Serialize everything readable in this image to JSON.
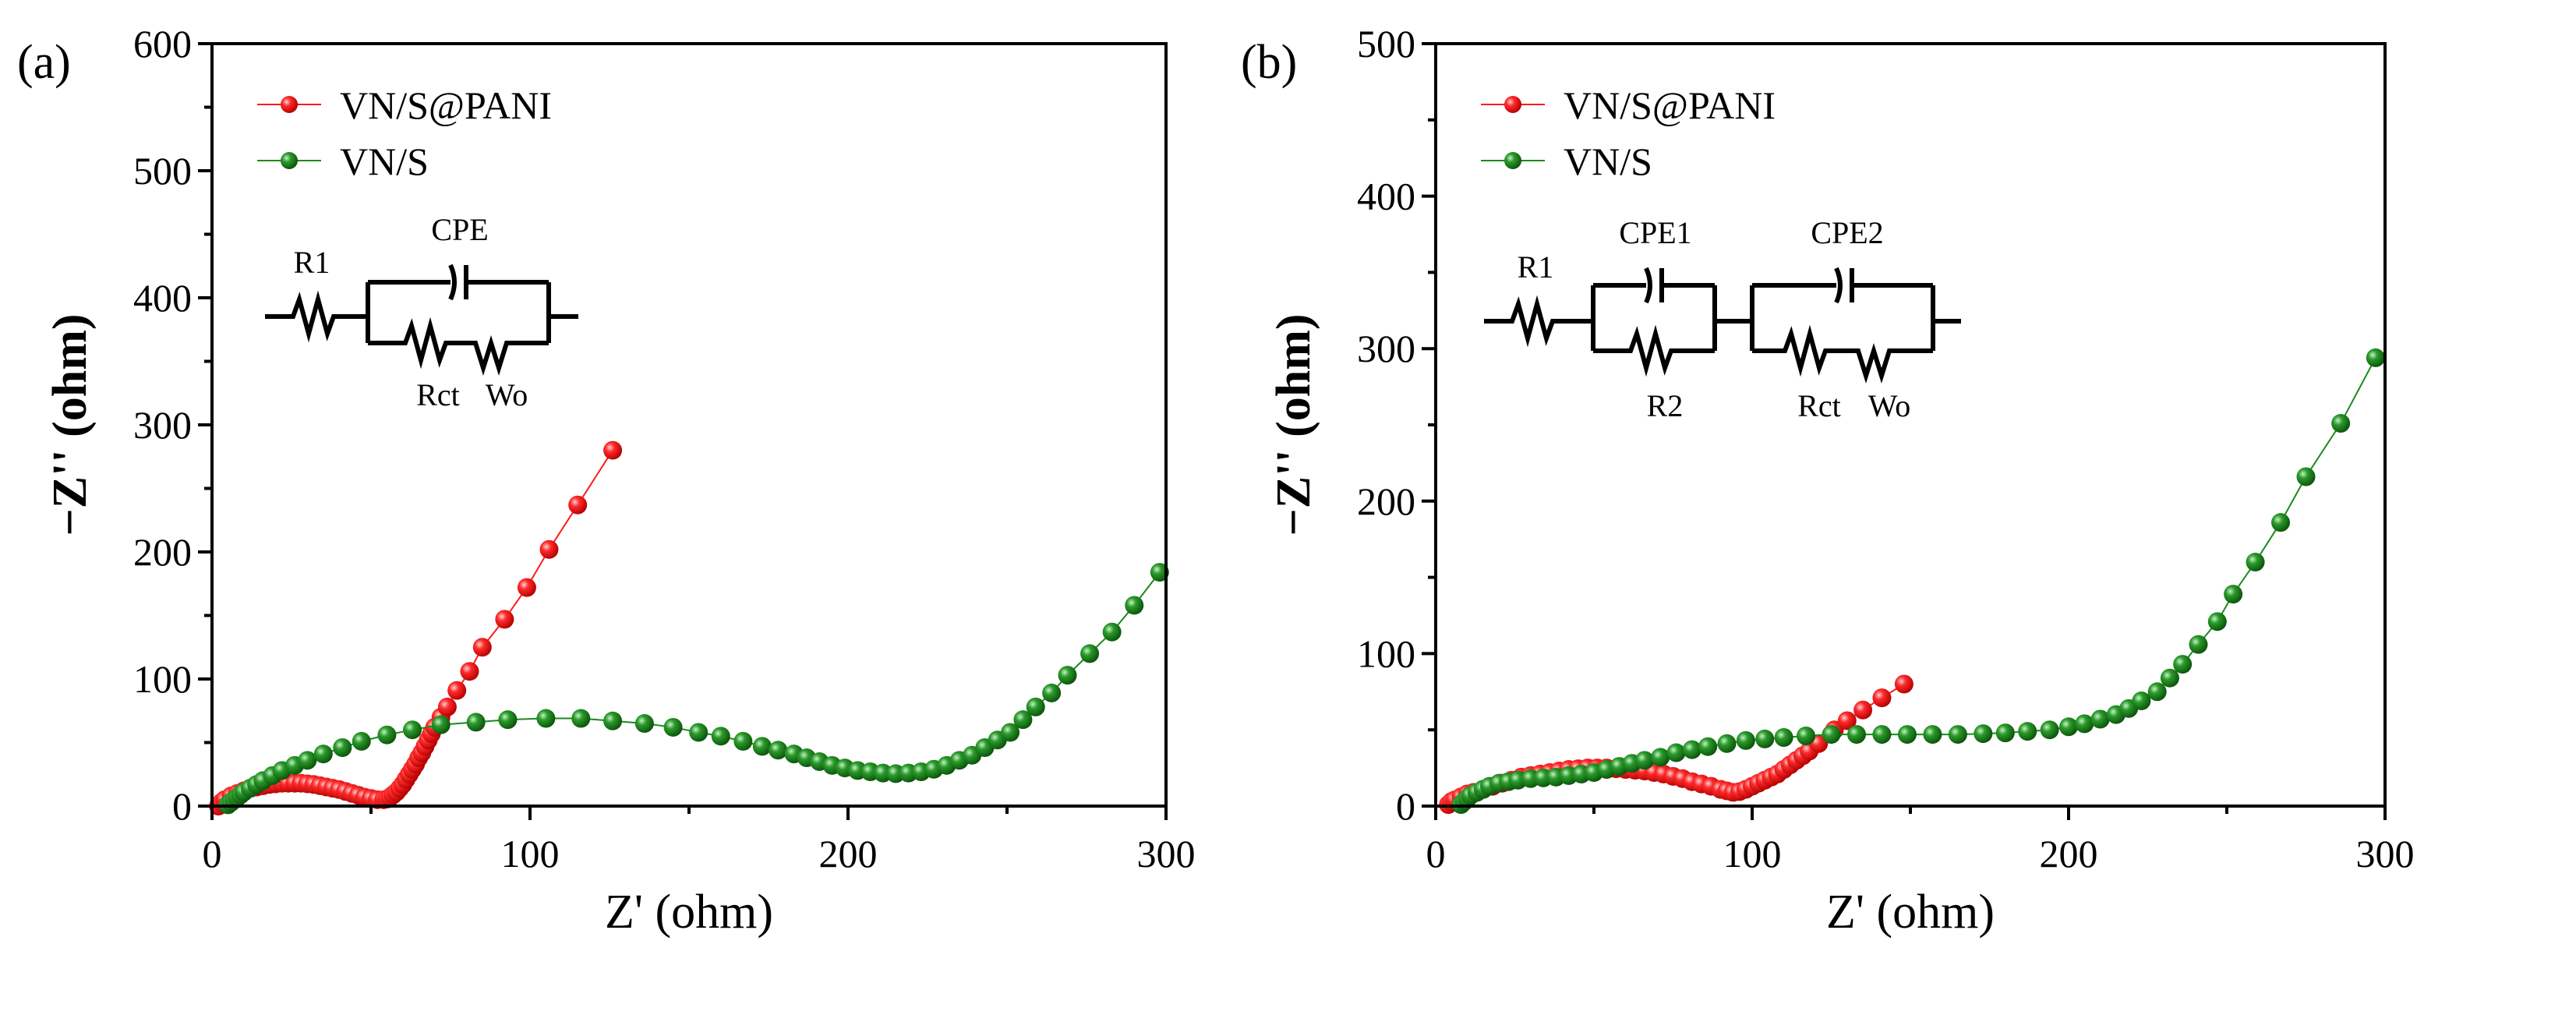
{
  "chart_data": [
    {
      "type": "scatter",
      "panel_label": "(a)",
      "xlabel": "Z' (ohm)",
      "ylabel": "−Z'' (ohm)",
      "xlim": [
        0,
        300
      ],
      "ylim": [
        0,
        600
      ],
      "xticks": [
        "0",
        "100",
        "200",
        "300"
      ],
      "yticks": [
        "0",
        "100",
        "200",
        "300",
        "400",
        "500",
        "600"
      ],
      "legend_position": "top-left",
      "circuit_labels": {
        "r1": "R1",
        "cpe": "CPE",
        "rct": "Rct",
        "wo": "Wo",
        "w_symbol": "W"
      },
      "series": [
        {
          "name": "VN/S@PANI",
          "color": "#ff1a1a",
          "x": [
            2,
            3,
            4,
            6,
            8,
            10,
            12,
            14,
            16,
            18,
            20,
            22,
            24,
            26,
            28,
            30,
            32,
            34,
            36,
            38,
            40,
            42,
            44,
            46,
            48,
            50,
            52,
            54,
            55,
            56,
            57,
            58,
            59,
            60,
            61,
            62,
            63,
            64,
            65,
            66,
            67,
            68,
            69,
            70,
            72,
            74,
            77,
            81,
            85,
            92,
            99,
            106,
            115,
            126
          ],
          "y": [
            0,
            3,
            5,
            8,
            10,
            12,
            14,
            15,
            16,
            17,
            17.5,
            18,
            18,
            18,
            18,
            17.5,
            17,
            16,
            15,
            14,
            13,
            11.5,
            10,
            8.5,
            7,
            6,
            5,
            5,
            5.5,
            7,
            9,
            11,
            14,
            17,
            21,
            25,
            29,
            33,
            38,
            42,
            47,
            52,
            57,
            62,
            70,
            78,
            91,
            106,
            125,
            147,
            172,
            202,
            237,
            280
          ]
        },
        {
          "name": "VN/S",
          "color": "#1a8a1a",
          "x": [
            5,
            6,
            7,
            8,
            9,
            10,
            12,
            14,
            16,
            19,
            22,
            26,
            30,
            35,
            41,
            47,
            55,
            63,
            72,
            83,
            93,
            105,
            116,
            126,
            136,
            145,
            153,
            160,
            167,
            173,
            178,
            183,
            187,
            191,
            195,
            199,
            203,
            207,
            211,
            215,
            219,
            223,
            227,
            231,
            235,
            239,
            243,
            247,
            251,
            255,
            259,
            264,
            269,
            276,
            283,
            290,
            298
          ],
          "y": [
            1,
            3,
            5,
            7,
            9,
            11,
            14,
            17,
            20,
            24,
            28,
            32,
            36,
            41,
            46,
            51,
            56,
            60,
            64,
            66,
            68,
            69,
            69,
            67,
            65,
            62,
            58,
            55,
            51,
            47,
            44,
            41,
            38,
            35,
            32,
            30,
            28,
            27,
            26,
            25.5,
            26,
            27,
            29,
            32,
            36,
            40,
            46,
            52,
            58,
            68,
            78,
            89,
            103,
            120,
            137,
            158,
            184
          ]
        }
      ]
    },
    {
      "type": "scatter",
      "panel_label": "(b)",
      "xlabel": "Z' (ohm)",
      "ylabel": "−Z'' (ohm)",
      "xlim": [
        0,
        300
      ],
      "ylim": [
        0,
        500
      ],
      "xticks": [
        "0",
        "100",
        "200",
        "300"
      ],
      "yticks": [
        "0",
        "100",
        "200",
        "300",
        "400",
        "500"
      ],
      "legend_position": "top-left",
      "circuit_labels": {
        "r1": "R1",
        "cpe1": "CPE1",
        "cpe2": "CPE2",
        "r2": "R2",
        "rct": "Rct",
        "wo": "Wo",
        "w_symbol": "W"
      },
      "series": [
        {
          "name": "VN/S@PANI",
          "color": "#ff1a1a",
          "x": [
            4,
            5,
            6,
            8,
            10,
            12,
            15,
            18,
            21,
            24,
            27,
            30,
            33,
            36,
            39,
            42,
            45,
            48,
            51,
            54,
            57,
            60,
            63,
            66,
            69,
            72,
            75,
            78,
            81,
            84,
            87,
            90,
            92,
            94,
            96,
            98,
            100,
            102,
            104,
            106,
            108,
            110,
            112,
            114,
            116,
            118,
            121,
            126,
            130,
            135,
            141,
            148
          ],
          "y": [
            1,
            3,
            4,
            6,
            8,
            9,
            11,
            13,
            15,
            17,
            19,
            20,
            21,
            22,
            23,
            24,
            24.5,
            25,
            25,
            25,
            24.5,
            24,
            23.5,
            23,
            22,
            21,
            19.5,
            18,
            16,
            14.5,
            13,
            11,
            10,
            9,
            9.5,
            11,
            13,
            15,
            17,
            19,
            21,
            24,
            27,
            30,
            33,
            36,
            41,
            50,
            56,
            63,
            71,
            80
          ]
        },
        {
          "name": "VN/S",
          "color": "#1a8a1a",
          "x": [
            8,
            9,
            10,
            11,
            13,
            15,
            17,
            20,
            23,
            26,
            30,
            34,
            38,
            42,
            46,
            50,
            54,
            58,
            62,
            66,
            71,
            76,
            81,
            86,
            92,
            98,
            104,
            110,
            117,
            125,
            133,
            141,
            149,
            157,
            165,
            173,
            180,
            187,
            194,
            200,
            205,
            210,
            215,
            219,
            223,
            228,
            232,
            236,
            241,
            247,
            252,
            259,
            267,
            275,
            286,
            297
          ],
          "y": [
            1,
            3,
            5,
            7,
            9,
            11,
            13,
            15,
            16,
            17,
            18,
            18.5,
            19,
            20,
            21,
            22,
            24,
            26,
            28,
            30,
            32,
            35,
            37,
            39,
            41,
            43,
            44,
            45,
            46,
            47,
            47,
            47,
            47,
            47,
            47,
            47.5,
            48,
            49,
            50,
            52,
            54,
            57,
            60,
            64,
            69,
            75,
            84,
            93,
            106,
            121,
            139,
            160,
            186,
            216,
            251,
            294
          ]
        }
      ]
    }
  ]
}
